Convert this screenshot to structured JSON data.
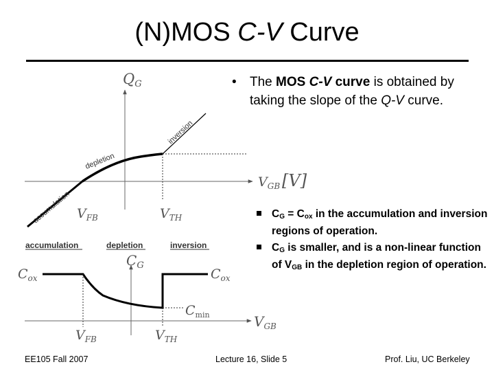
{
  "title": {
    "prefix": "(N)MOS ",
    "italic": "C-V",
    "suffix": " Curve"
  },
  "qv_plot": {
    "y_axis_label": "Q",
    "y_axis_sub": "G",
    "x_axis_label": "V",
    "x_axis_sub": "GB",
    "x_unit": "[V]",
    "regions": [
      "accumulation",
      "depletion",
      "inversion"
    ],
    "vfb_label": "V",
    "vfb_sub": "FB",
    "vth_label": "V",
    "vth_sub": "TH"
  },
  "cv_plot": {
    "region_headers": [
      "accumulation",
      "depletion",
      "inversion"
    ],
    "y_axis_label": "C",
    "y_axis_sub": "G",
    "cox_left": "C",
    "cox_left_sub": "ox",
    "cox_right": "C",
    "cox_right_sub": "ox",
    "cmin": "C",
    "cmin_sub": "min",
    "x_axis_label": "V",
    "x_axis_sub": "GB",
    "vfb_label": "V",
    "vfb_sub": "FB",
    "vth_label": "V",
    "vth_sub": "TH"
  },
  "bullets": {
    "main": {
      "part1": "The ",
      "bold": "MOS ",
      "bold_italic": "C-V",
      "bold2": " curve",
      "part2": " is obtained by taking the slope of the ",
      "italic": "Q-V",
      "part3": " curve."
    },
    "sub1": {
      "c": "C",
      "c_sub": "G",
      "eq": " = C",
      "eq_sub": "ox",
      "rest": " in the accumulation and inversion regions of operation."
    },
    "sub2": {
      "c": "C",
      "c_sub": "G",
      "mid": " is smaller, and is a non-linear function of V",
      "v_sub": "GB",
      "rest": " in the depletion region of operation."
    }
  },
  "footer": {
    "left": "EE105 Fall 2007",
    "center": "Lecture 16, Slide 5",
    "right": "Prof. Liu, UC Berkeley"
  }
}
